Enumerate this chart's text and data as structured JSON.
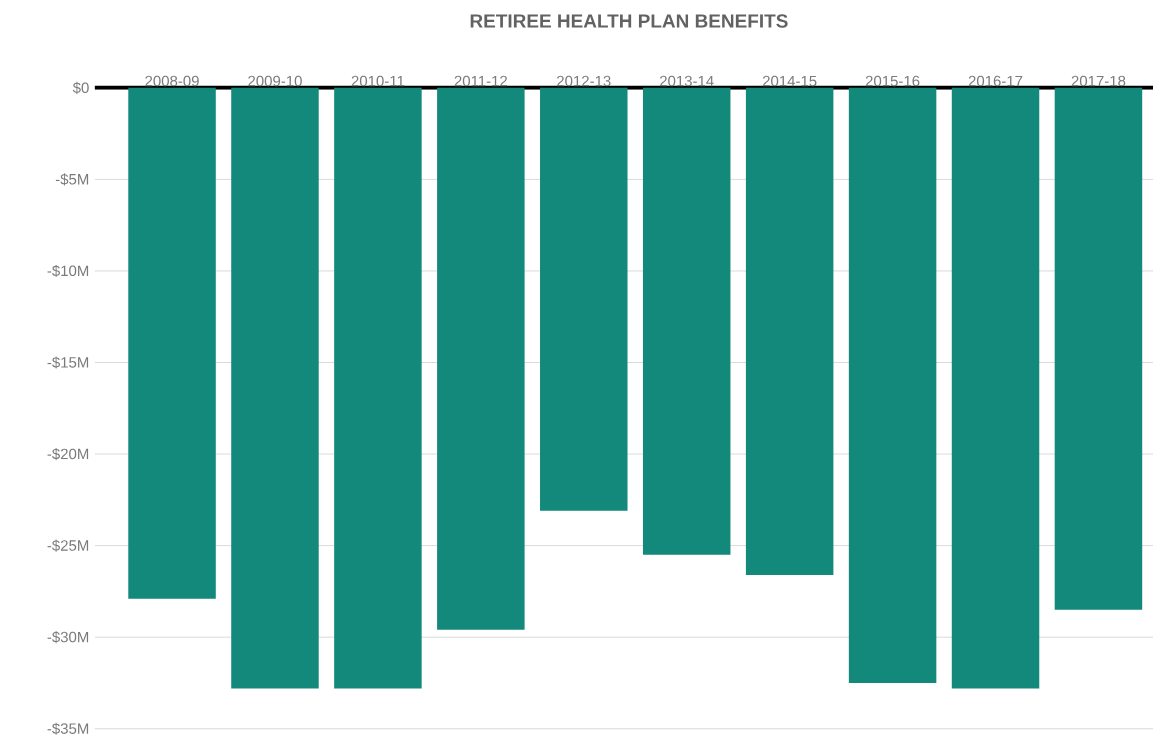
{
  "chart_data": {
    "type": "bar",
    "title": "RETIREE HEALTH PLAN BENEFITS",
    "categories": [
      "2008-09",
      "2009-10",
      "2010-11",
      "2011-12",
      "2012-13",
      "2013-14",
      "2014-15",
      "2015-16",
      "2016-17",
      "2017-18"
    ],
    "values": [
      -27.9,
      -32.8,
      -32.8,
      -29.6,
      -23.1,
      -25.5,
      -26.6,
      -32.5,
      -32.8,
      -28.5
    ],
    "color": "#12897a",
    "ylim": [
      -35,
      0
    ],
    "yticks": [
      {
        "value": 0,
        "label": "$0"
      },
      {
        "value": -5,
        "label": "-$5M"
      },
      {
        "value": -10,
        "label": "-$10M"
      },
      {
        "value": -15,
        "label": "-$15M"
      },
      {
        "value": -20,
        "label": "-$20M"
      },
      {
        "value": -25,
        "label": "-$25M"
      },
      {
        "value": -30,
        "label": "-$30M"
      },
      {
        "value": -35,
        "label": "-$35M"
      }
    ],
    "grid": "y"
  }
}
